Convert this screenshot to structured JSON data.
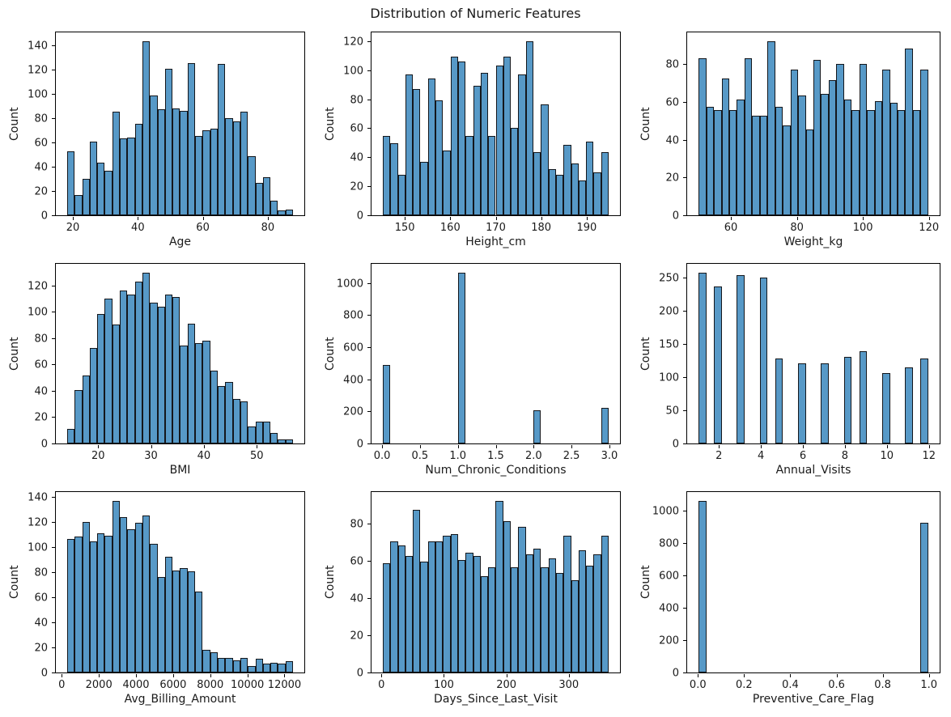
{
  "figure": {
    "title": "Distribution of Numeric Features"
  },
  "style": {
    "bar_fill": "#5799c7",
    "bar_edge": "#14171c",
    "background": "#ffffff",
    "text_color": "#1a1a1a"
  },
  "chart_data": [
    {
      "type": "bar",
      "variant": "histogram",
      "xlabel": "Age",
      "ylabel": "Count",
      "bin_start": 18,
      "bin_width": 2.3333,
      "values": [
        53,
        17,
        30,
        61,
        44,
        37,
        86,
        64,
        65,
        76,
        145,
        100,
        88,
        122,
        89,
        87,
        127,
        66,
        71,
        72,
        126,
        81,
        78,
        86,
        49,
        27,
        32,
        12,
        4,
        5
      ],
      "xlim": [
        14.5,
        91.5
      ],
      "ylim": [
        0,
        152.3
      ],
      "xticks": [
        20,
        40,
        60,
        80
      ],
      "xtick_labels": [
        "20",
        "40",
        "60",
        "80"
      ],
      "yticks": [
        0,
        20,
        40,
        60,
        80,
        100,
        120,
        140
      ],
      "ytick_labels": [
        "0",
        "20",
        "40",
        "60",
        "80",
        "100",
        "120",
        "140"
      ],
      "grid": false,
      "legend": null
    },
    {
      "type": "bar",
      "variant": "histogram",
      "xlabel": "Height_cm",
      "ylabel": "Count",
      "bin_start": 145,
      "bin_width": 1.6667,
      "values": [
        55,
        50,
        28,
        98,
        88,
        37,
        95,
        80,
        45,
        110,
        107,
        55,
        90,
        99,
        55,
        104,
        110,
        61,
        98,
        121,
        44,
        77,
        32,
        28,
        49,
        36,
        24,
        51,
        30,
        44
      ],
      "xlim": [
        142.5,
        197.5
      ],
      "ylim": [
        0,
        127.1
      ],
      "xticks": [
        150,
        160,
        170,
        180,
        190
      ],
      "xtick_labels": [
        "150",
        "160",
        "170",
        "180",
        "190"
      ],
      "yticks": [
        0,
        20,
        40,
        60,
        80,
        100,
        120
      ],
      "ytick_labels": [
        "0",
        "20",
        "40",
        "60",
        "80",
        "100",
        "120"
      ],
      "grid": false,
      "legend": null
    },
    {
      "type": "bar",
      "variant": "histogram",
      "xlabel": "Weight_kg",
      "ylabel": "Count",
      "bin_start": 50,
      "bin_width": 2.3333,
      "values": [
        84,
        58,
        56,
        73,
        56,
        62,
        84,
        53,
        53,
        93,
        58,
        48,
        78,
        64,
        46,
        83,
        65,
        72,
        81,
        62,
        56,
        81,
        56,
        61,
        78,
        60,
        56,
        89,
        56,
        78
      ],
      "xlim": [
        46.5,
        123.5
      ],
      "ylim": [
        0,
        97.7
      ],
      "xticks": [
        60,
        80,
        100,
        120
      ],
      "xtick_labels": [
        "60",
        "80",
        "100",
        "120"
      ],
      "yticks": [
        0,
        20,
        40,
        60,
        80
      ],
      "ytick_labels": [
        "0",
        "20",
        "40",
        "60",
        "80"
      ],
      "grid": false,
      "legend": null
    },
    {
      "type": "bar",
      "variant": "histogram",
      "xlabel": "BMI",
      "ylabel": "Count",
      "bin_start": 14,
      "bin_width": 1.4333,
      "values": [
        11,
        41,
        52,
        73,
        99,
        111,
        91,
        117,
        114,
        124,
        131,
        108,
        105,
        114,
        112,
        75,
        92,
        77,
        79,
        56,
        44,
        47,
        34,
        32,
        13,
        17,
        17,
        8,
        3,
        3
      ],
      "xlim": [
        11.85,
        59.15
      ],
      "ylim": [
        0,
        137.6
      ],
      "xticks": [
        20,
        30,
        40,
        50
      ],
      "xtick_labels": [
        "20",
        "30",
        "40",
        "50"
      ],
      "yticks": [
        0,
        20,
        40,
        60,
        80,
        100,
        120
      ],
      "ytick_labels": [
        "0",
        "20",
        "40",
        "60",
        "80",
        "100",
        "120"
      ],
      "grid": false,
      "legend": null
    },
    {
      "type": "bar",
      "variant": "histogram",
      "xlabel": "Num_Chronic_Conditions",
      "ylabel": "Count",
      "bin_start": 0,
      "bin_width": 0.1,
      "values": [
        495,
        0,
        0,
        0,
        0,
        0,
        0,
        0,
        0,
        0,
        1075,
        0,
        0,
        0,
        0,
        0,
        0,
        0,
        0,
        0,
        210,
        0,
        0,
        0,
        0,
        0,
        0,
        0,
        0,
        225
      ],
      "xlim": [
        -0.15,
        3.15
      ],
      "ylim": [
        0,
        1128.8
      ],
      "xticks": [
        0,
        0.5,
        1,
        1.5,
        2,
        2.5,
        3
      ],
      "xtick_labels": [
        "0.0",
        "0.5",
        "1.0",
        "1.5",
        "2.0",
        "2.5",
        "3.0"
      ],
      "yticks": [
        0,
        200,
        400,
        600,
        800,
        1000
      ],
      "ytick_labels": [
        "0",
        "200",
        "400",
        "600",
        "800",
        "1000"
      ],
      "grid": false,
      "legend": null
    },
    {
      "type": "bar",
      "variant": "histogram",
      "xlabel": "Annual_Visits",
      "ylabel": "Count",
      "bin_start": 1,
      "bin_width": 0.36667,
      "values": [
        260,
        0,
        238,
        0,
        0,
        256,
        0,
        0,
        252,
        0,
        129,
        0,
        0,
        122,
        0,
        0,
        122,
        0,
        0,
        131,
        0,
        140,
        0,
        0,
        107,
        0,
        0,
        116,
        0,
        129
      ],
      "xlim": [
        0.45,
        12.55
      ],
      "ylim": [
        0,
        273
      ],
      "xticks": [
        2,
        4,
        6,
        8,
        10,
        12
      ],
      "xtick_labels": [
        "2",
        "4",
        "6",
        "8",
        "10",
        "12"
      ],
      "yticks": [
        0,
        50,
        100,
        150,
        200,
        250
      ],
      "ytick_labels": [
        "0",
        "50",
        "100",
        "150",
        "200",
        "250"
      ],
      "grid": false,
      "legend": null
    },
    {
      "type": "bar",
      "variant": "histogram",
      "xlabel": "Avg_Billing_Amount",
      "ylabel": "Count",
      "bin_start": 250,
      "bin_width": 408.33,
      "values": [
        107,
        109,
        121,
        105,
        112,
        110,
        138,
        125,
        115,
        120,
        126,
        103,
        77,
        93,
        82,
        84,
        81,
        65,
        18,
        16,
        12,
        12,
        10,
        12,
        5,
        11,
        7,
        8,
        7,
        9
      ],
      "xlim": [
        -362.5,
        13112.5
      ],
      "ylim": [
        0,
        144.9
      ],
      "xticks": [
        0,
        2000,
        4000,
        6000,
        8000,
        10000,
        12000
      ],
      "xtick_labels": [
        "0",
        "2000",
        "4000",
        "6000",
        "8000",
        "10000",
        "12000"
      ],
      "yticks": [
        0,
        20,
        40,
        60,
        80,
        100,
        120,
        140
      ],
      "ytick_labels": [
        "0",
        "20",
        "40",
        "60",
        "80",
        "100",
        "120",
        "140"
      ],
      "grid": false,
      "legend": null
    },
    {
      "type": "bar",
      "variant": "histogram",
      "xlabel": "Days_Since_Last_Visit",
      "ylabel": "Count",
      "bin_start": 1,
      "bin_width": 12.1333,
      "values": [
        59,
        71,
        69,
        63,
        88,
        60,
        71,
        71,
        74,
        75,
        61,
        65,
        63,
        52,
        57,
        93,
        82,
        57,
        79,
        64,
        67,
        57,
        62,
        54,
        74,
        50,
        66,
        58,
        64,
        74
      ],
      "xlim": [
        -17.2,
        383.2
      ],
      "ylim": [
        0,
        97.7
      ],
      "xticks": [
        0,
        100,
        200,
        300
      ],
      "xtick_labels": [
        "0",
        "100",
        "200",
        "300"
      ],
      "yticks": [
        0,
        20,
        40,
        60,
        80
      ],
      "ytick_labels": [
        "0",
        "20",
        "40",
        "60",
        "80"
      ],
      "grid": false,
      "legend": null
    },
    {
      "type": "bar",
      "variant": "histogram",
      "xlabel": "Preventive_Care_Flag",
      "ylabel": "Count",
      "bin_start": 0,
      "bin_width": 0.033333,
      "values": [
        1070,
        0,
        0,
        0,
        0,
        0,
        0,
        0,
        0,
        0,
        0,
        0,
        0,
        0,
        0,
        0,
        0,
        0,
        0,
        0,
        0,
        0,
        0,
        0,
        0,
        0,
        0,
        0,
        0,
        930
      ],
      "xlim": [
        -0.05,
        1.05
      ],
      "ylim": [
        0,
        1123.5
      ],
      "xticks": [
        0,
        0.2,
        0.4,
        0.6,
        0.8,
        1.0
      ],
      "xtick_labels": [
        "0.0",
        "0.2",
        "0.4",
        "0.6",
        "0.8",
        "1.0"
      ],
      "yticks": [
        0,
        200,
        400,
        600,
        800,
        1000
      ],
      "ytick_labels": [
        "0",
        "200",
        "400",
        "600",
        "800",
        "1000"
      ],
      "grid": false,
      "legend": null
    }
  ]
}
